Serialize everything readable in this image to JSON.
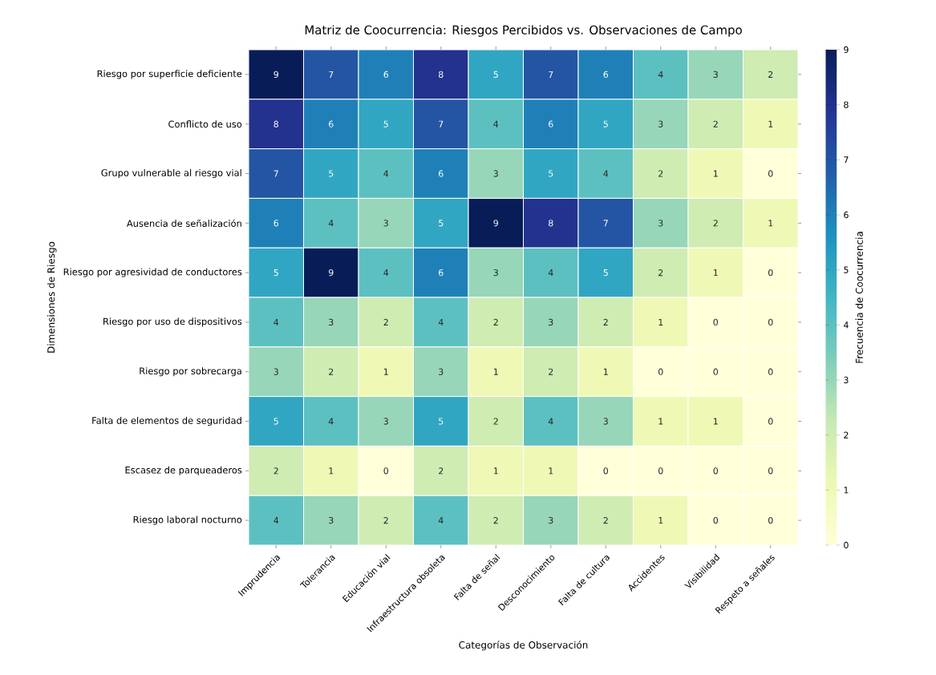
{
  "chart_data": {
    "type": "heatmap",
    "title": "Matriz de Coocurrencia: Riesgos Percibidos vs. Observaciones de Campo",
    "xlabel": "Categorías de Observación",
    "ylabel": "Dimensiones de Riesgo",
    "clabel": "Frecuencia de Coocurrencia",
    "categories": [
      "Imprudencia",
      "Tolerancia",
      "Educación vial",
      "Infraestructura obsoleta",
      "Falta de señal",
      "Desconocimiento",
      "Falta de cultura",
      "Accidentes",
      "Visibilidad",
      "Respeto a señales"
    ],
    "y_categories": [
      "Riesgo por superficie deficiente",
      "Conflicto de uso",
      "Grupo vulnerable al riesgo vial",
      "Ausencia de señalización",
      "Riesgo por agresividad de conductores",
      "Riesgo por uso de dispositivos",
      "Riesgo por sobrecarga",
      "Falta de elementos de seguridad",
      "Escasez de parqueaderos",
      "Riesgo laboral nocturno"
    ],
    "cells": [
      [
        9,
        7,
        6,
        8,
        5,
        7,
        6,
        4,
        3,
        2
      ],
      [
        8,
        6,
        5,
        7,
        4,
        6,
        5,
        3,
        2,
        1
      ],
      [
        7,
        5,
        4,
        6,
        3,
        5,
        4,
        2,
        1,
        0
      ],
      [
        6,
        4,
        3,
        5,
        9,
        8,
        7,
        3,
        2,
        1
      ],
      [
        5,
        9,
        4,
        6,
        3,
        4,
        5,
        2,
        1,
        0
      ],
      [
        4,
        3,
        2,
        4,
        2,
        3,
        2,
        1,
        0,
        0
      ],
      [
        3,
        2,
        1,
        3,
        1,
        2,
        1,
        0,
        0,
        0
      ],
      [
        5,
        4,
        3,
        5,
        2,
        4,
        3,
        1,
        1,
        0
      ],
      [
        2,
        1,
        0,
        2,
        1,
        1,
        0,
        0,
        0,
        0
      ],
      [
        4,
        3,
        2,
        4,
        2,
        3,
        2,
        1,
        0,
        0
      ]
    ],
    "data_labels": true,
    "clim": [
      0,
      9
    ],
    "cticks": [
      0,
      1,
      2,
      3,
      4,
      5,
      6,
      7,
      8,
      9
    ]
  }
}
